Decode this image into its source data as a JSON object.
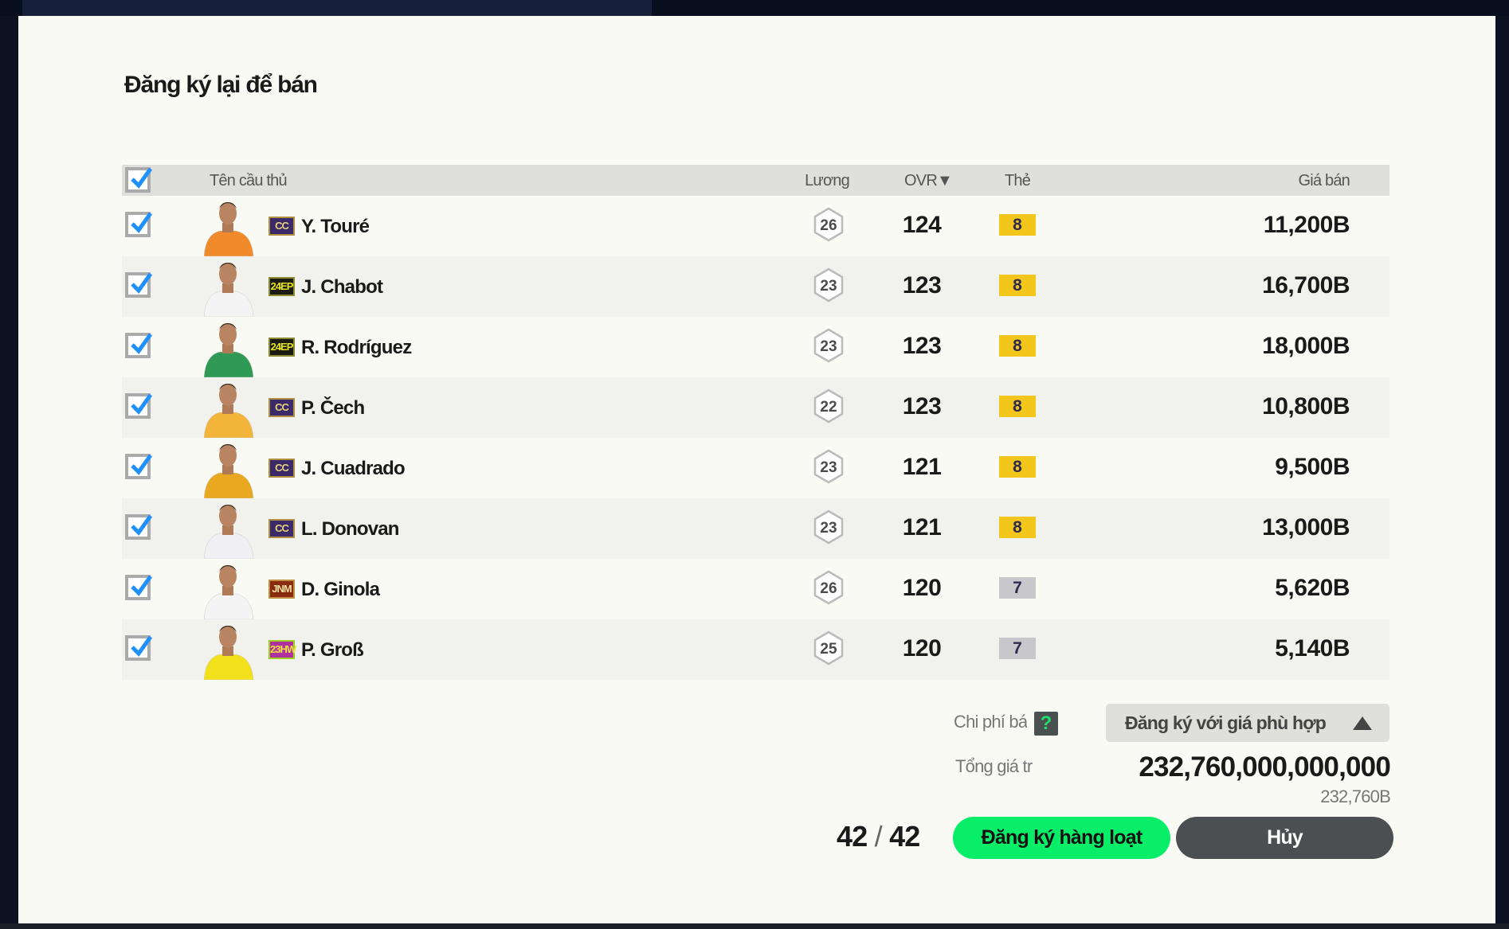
{
  "dialog": {
    "title": "Đăng ký lại để bán"
  },
  "table": {
    "headers": {
      "name": "Tên cầu thủ",
      "salary": "Lương",
      "ovr": "OVR▼",
      "level": "Thẻ",
      "price": "Giá bán"
    },
    "all_checked": true,
    "rows": [
      {
        "checked": true,
        "season": "CC",
        "name": "Y. Touré",
        "salary": "26",
        "ovr": "124",
        "level": "8",
        "price": "11,200B",
        "jersey": "#f08a2a"
      },
      {
        "checked": true,
        "season": "24EP",
        "name": "J. Chabot",
        "salary": "23",
        "ovr": "123",
        "level": "8",
        "price": "16,700B",
        "jersey": "#f4f4f4"
      },
      {
        "checked": true,
        "season": "24EP",
        "name": "R. Rodríguez",
        "salary": "23",
        "ovr": "123",
        "level": "8",
        "price": "18,000B",
        "jersey": "#2e9a55"
      },
      {
        "checked": true,
        "season": "CC",
        "name": "P. Čech",
        "salary": "22",
        "ovr": "123",
        "level": "8",
        "price": "10,800B",
        "jersey": "#f2b53a"
      },
      {
        "checked": true,
        "season": "CC",
        "name": "J. Cuadrado",
        "salary": "23",
        "ovr": "121",
        "level": "8",
        "price": "9,500B",
        "jersey": "#e8a820"
      },
      {
        "checked": true,
        "season": "CC",
        "name": "L. Donovan",
        "salary": "23",
        "ovr": "121",
        "level": "8",
        "price": "13,000B",
        "jersey": "#f0f0f4"
      },
      {
        "checked": true,
        "season": "JNM",
        "name": "D. Ginola",
        "salary": "26",
        "ovr": "120",
        "level": "7",
        "price": "5,620B",
        "jersey": "#f4f4f4"
      },
      {
        "checked": true,
        "season": "23HW",
        "name": "P. Groß",
        "salary": "25",
        "ovr": "120",
        "level": "7",
        "price": "5,140B",
        "jersey": "#f2e01a"
      }
    ]
  },
  "footer": {
    "fee_label": "Chi phí bá",
    "help": "?",
    "dropdown_value": "Đăng ký với giá phù hợp",
    "total_label": "Tổng giá tr",
    "total_value": "232,760,000,000,000",
    "total_short": "232,760B",
    "count_selected": "42",
    "count_sep": "/",
    "count_total": "42",
    "register_button": "Đăng ký hàng loạt",
    "cancel_button": "Hủy"
  },
  "colors": {
    "accent": "#08ee68",
    "check": "#1e90ff",
    "level8": "#f2c61a",
    "level7": "#c8c8cc"
  }
}
